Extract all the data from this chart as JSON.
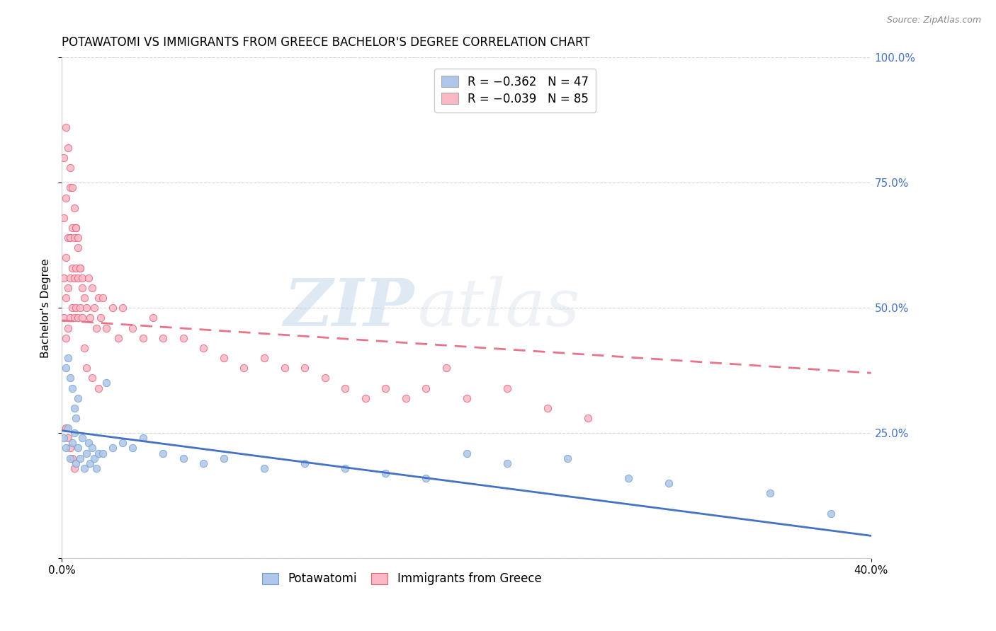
{
  "title": "POTAWATOMI VS IMMIGRANTS FROM GREECE BACHELOR'S DEGREE CORRELATION CHART",
  "source": "Source: ZipAtlas.com",
  "ylabel": "Bachelor's Degree",
  "right_yticks": [
    "100.0%",
    "75.0%",
    "50.0%",
    "25.0%"
  ],
  "right_ytick_vals": [
    1.0,
    0.75,
    0.5,
    0.25
  ],
  "xlim": [
    0.0,
    0.4
  ],
  "ylim": [
    0.0,
    1.0
  ],
  "legend_entries": [
    {
      "label": "R = −0.362   N = 47",
      "color": "#aec6e8"
    },
    {
      "label": "R = −0.039   N = 85",
      "color": "#f9b8c4"
    }
  ],
  "potawatomi": {
    "name": "Potawatomi",
    "color": "#aec6e8",
    "edge_color": "#6fa0cc",
    "trend_color": "#4472c4",
    "trend_style": "solid",
    "trend_x": [
      0.0,
      0.4
    ],
    "trend_y": [
      0.255,
      0.045
    ],
    "x": [
      0.001,
      0.002,
      0.003,
      0.004,
      0.005,
      0.006,
      0.007,
      0.008,
      0.009,
      0.01,
      0.011,
      0.012,
      0.013,
      0.014,
      0.015,
      0.016,
      0.017,
      0.018,
      0.02,
      0.022,
      0.025,
      0.03,
      0.035,
      0.04,
      0.05,
      0.06,
      0.07,
      0.08,
      0.1,
      0.12,
      0.14,
      0.16,
      0.18,
      0.2,
      0.22,
      0.25,
      0.28,
      0.3,
      0.35,
      0.38,
      0.002,
      0.003,
      0.004,
      0.005,
      0.006,
      0.007,
      0.008
    ],
    "y": [
      0.24,
      0.22,
      0.26,
      0.2,
      0.23,
      0.25,
      0.19,
      0.22,
      0.2,
      0.24,
      0.18,
      0.21,
      0.23,
      0.19,
      0.22,
      0.2,
      0.18,
      0.21,
      0.21,
      0.35,
      0.22,
      0.23,
      0.22,
      0.24,
      0.21,
      0.2,
      0.19,
      0.2,
      0.18,
      0.19,
      0.18,
      0.17,
      0.16,
      0.21,
      0.19,
      0.2,
      0.16,
      0.15,
      0.13,
      0.09,
      0.38,
      0.4,
      0.36,
      0.34,
      0.3,
      0.28,
      0.32
    ]
  },
  "greece": {
    "name": "Immigrants from Greece",
    "color": "#f9b8c4",
    "edge_color": "#e0607a",
    "trend_color": "#e8748a",
    "trend_style": "dashed",
    "trend_x": [
      0.0,
      0.4
    ],
    "trend_y": [
      0.475,
      0.37
    ],
    "x": [
      0.001,
      0.001,
      0.001,
      0.002,
      0.002,
      0.002,
      0.002,
      0.003,
      0.003,
      0.003,
      0.004,
      0.004,
      0.004,
      0.004,
      0.005,
      0.005,
      0.005,
      0.006,
      0.006,
      0.006,
      0.007,
      0.007,
      0.007,
      0.008,
      0.008,
      0.008,
      0.009,
      0.009,
      0.01,
      0.01,
      0.011,
      0.012,
      0.013,
      0.014,
      0.015,
      0.016,
      0.017,
      0.018,
      0.019,
      0.02,
      0.022,
      0.025,
      0.028,
      0.03,
      0.035,
      0.04,
      0.045,
      0.05,
      0.06,
      0.07,
      0.08,
      0.09,
      0.1,
      0.11,
      0.12,
      0.13,
      0.14,
      0.15,
      0.16,
      0.17,
      0.18,
      0.19,
      0.2,
      0.22,
      0.24,
      0.26,
      0.001,
      0.002,
      0.003,
      0.004,
      0.005,
      0.006,
      0.007,
      0.008,
      0.009,
      0.01,
      0.011,
      0.012,
      0.015,
      0.018,
      0.002,
      0.003,
      0.004,
      0.005,
      0.006
    ],
    "y": [
      0.48,
      0.56,
      0.68,
      0.44,
      0.52,
      0.6,
      0.72,
      0.46,
      0.54,
      0.64,
      0.48,
      0.56,
      0.64,
      0.74,
      0.5,
      0.58,
      0.66,
      0.48,
      0.56,
      0.64,
      0.5,
      0.58,
      0.66,
      0.48,
      0.56,
      0.64,
      0.5,
      0.58,
      0.48,
      0.56,
      0.52,
      0.5,
      0.56,
      0.48,
      0.54,
      0.5,
      0.46,
      0.52,
      0.48,
      0.52,
      0.46,
      0.5,
      0.44,
      0.5,
      0.46,
      0.44,
      0.48,
      0.44,
      0.44,
      0.42,
      0.4,
      0.38,
      0.4,
      0.38,
      0.38,
      0.36,
      0.34,
      0.32,
      0.34,
      0.32,
      0.34,
      0.38,
      0.32,
      0.34,
      0.3,
      0.28,
      0.8,
      0.86,
      0.82,
      0.78,
      0.74,
      0.7,
      0.66,
      0.62,
      0.58,
      0.54,
      0.42,
      0.38,
      0.36,
      0.34,
      0.26,
      0.24,
      0.22,
      0.2,
      0.18
    ]
  },
  "watermark_zip": "ZIP",
  "watermark_atlas": "atlas",
  "background_color": "#ffffff",
  "grid_color": "#cccccc",
  "title_fontsize": 12,
  "axis_label_fontsize": 11,
  "tick_fontsize": 11,
  "legend_fontsize": 12,
  "right_axis_color": "#4472c4",
  "source_color": "#888888"
}
